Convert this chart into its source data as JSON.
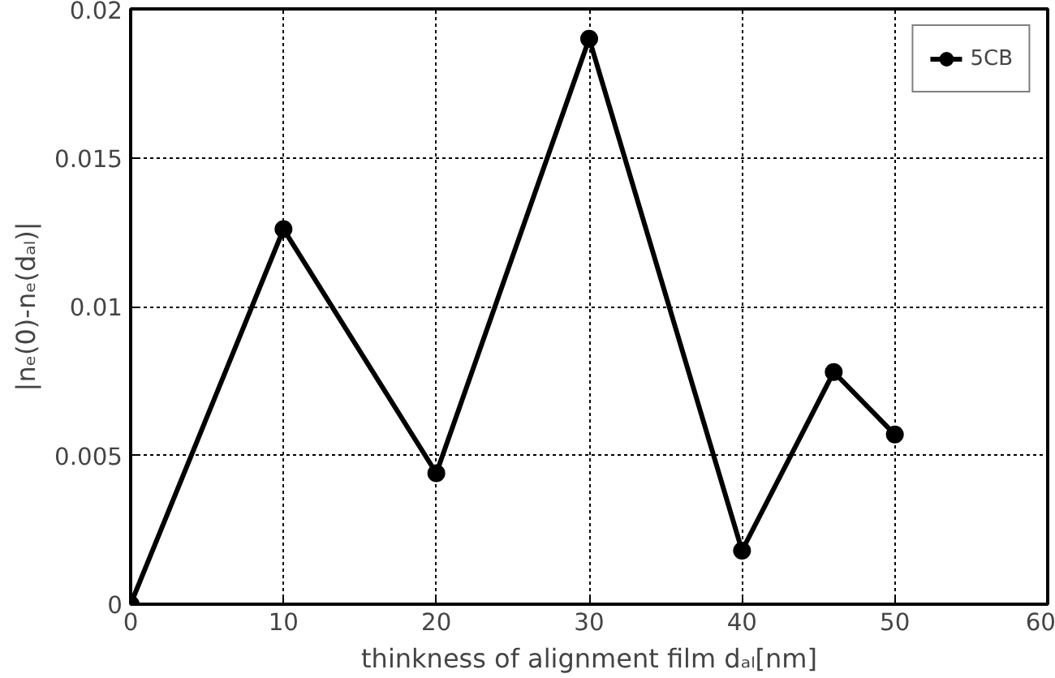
{
  "chart_data": {
    "type": "line",
    "xlabel": "thinkness of alignment film dₐₗ[nm]",
    "ylabel": "|nₑ(0)-nₑ(dₐₗ)|",
    "x": [
      0,
      10,
      20,
      30,
      40,
      46,
      50
    ],
    "series": [
      {
        "name": "5CB",
        "color": "#000000",
        "values": [
          0,
          0.0126,
          0.0044,
          0.019,
          0.0018,
          0.0078,
          0.0057
        ]
      }
    ],
    "xlim": [
      0,
      60
    ],
    "xticks": [
      0,
      10,
      20,
      30,
      40,
      50,
      60
    ],
    "ylim": [
      0,
      0.02
    ],
    "yticks": [
      0,
      0.005,
      0.01,
      0.015,
      0.02
    ],
    "grid": true,
    "legend": "top right",
    "marker": "circle",
    "line_style": "solid"
  }
}
